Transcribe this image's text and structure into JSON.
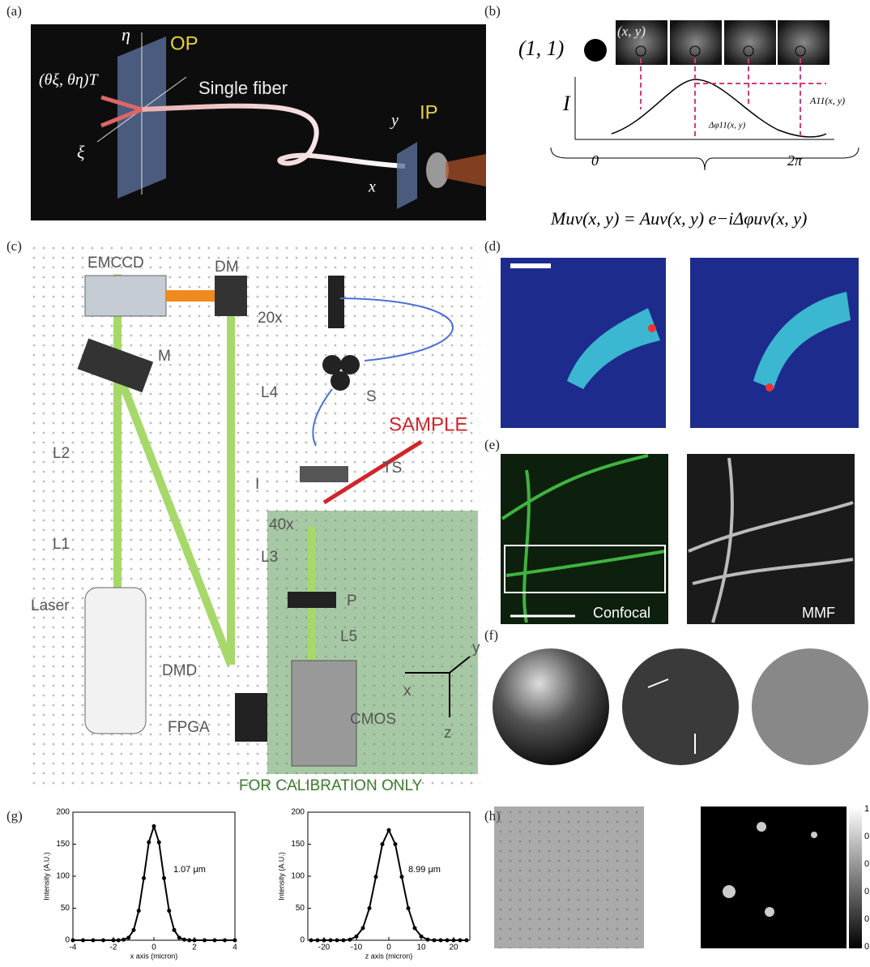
{
  "panel_labels": [
    "(a)",
    "(b)",
    "(c)",
    "(d)",
    "(e)",
    "(f)",
    "(g)",
    "(h)"
  ],
  "a": {
    "labels": [
      "η",
      "OP",
      "(θξ, θη)T",
      "Single fiber",
      "ξ",
      "y",
      "IP",
      "x"
    ]
  },
  "b": {
    "labels": [
      "(1, 1)",
      "(x, y)",
      "I",
      "A11(x, y)",
      "Δφ11(x, y)",
      "0",
      "2π"
    ],
    "equation": "Muv(x, y) = Auv(x, y) e−iΔφuv(x, y)"
  },
  "c": {
    "labels": [
      "EMCCD",
      "DM",
      "20x",
      "M",
      "L4",
      "S",
      "SAMPLE",
      "L2",
      "TS",
      "I",
      "40x",
      "L1",
      "L3",
      "Laser",
      "P",
      "L5",
      "DMD",
      "y",
      "x",
      "z",
      "FPGA",
      "CMOS",
      "FOR CALIBRATION ONLY"
    ]
  },
  "e": {
    "labels": [
      "Confocal",
      "MMF"
    ]
  },
  "h": {
    "colorbar_labels": [
      "1",
      "0",
      "0",
      "0",
      "0",
      "0"
    ]
  },
  "chart_data": [
    {
      "type": "line",
      "xlabel": "x axis (micron)",
      "ylabel": "Intensity (A.U.)",
      "annotation": "1.07 μm",
      "x": [
        -4,
        -3.5,
        -3,
        -2.5,
        -2,
        -1.75,
        -1.5,
        -1.25,
        -1,
        -0.75,
        -0.5,
        -0.25,
        0,
        0.25,
        0.5,
        0.75,
        1,
        1.25,
        1.5,
        1.75,
        2,
        2.5,
        3,
        3.5,
        4
      ],
      "series": [
        {
          "color": "#000000",
          "values": [
            0,
            0,
            0,
            0,
            0,
            0,
            1,
            4,
            16,
            46,
            97,
            153,
            178,
            153,
            97,
            46,
            16,
            4,
            1,
            0,
            0,
            0,
            0,
            0,
            0
          ]
        }
      ],
      "xlim": [
        -4,
        4
      ],
      "xticks": [
        -4,
        -2,
        0,
        2,
        4
      ],
      "ylim": [
        0,
        200
      ],
      "yticks": [
        0,
        50,
        100,
        150,
        200
      ]
    },
    {
      "type": "line",
      "xlabel": "z axis (micron)",
      "ylabel": "Intensity (A.U.)",
      "annotation": "8.99 μm",
      "x": [
        -24,
        -22,
        -20,
        -18,
        -16,
        -14,
        -12,
        -10,
        -8,
        -6,
        -4,
        -2,
        0,
        2,
        4,
        6,
        8,
        10,
        12,
        14,
        16,
        18,
        20,
        22,
        24
      ],
      "series": [
        {
          "color": "#000000",
          "values": [
            0,
            0,
            0,
            0,
            0,
            0,
            1,
            6,
            19,
            50,
            99,
            150,
            172,
            150,
            99,
            50,
            19,
            6,
            1,
            0,
            0,
            0,
            0,
            0,
            0
          ]
        }
      ],
      "xlim": [
        -25,
        25
      ],
      "xticks": [
        -20,
        -10,
        0,
        10,
        20
      ],
      "ylim": [
        0,
        200
      ],
      "yticks": [
        0,
        50,
        100,
        150,
        200
      ]
    }
  ]
}
